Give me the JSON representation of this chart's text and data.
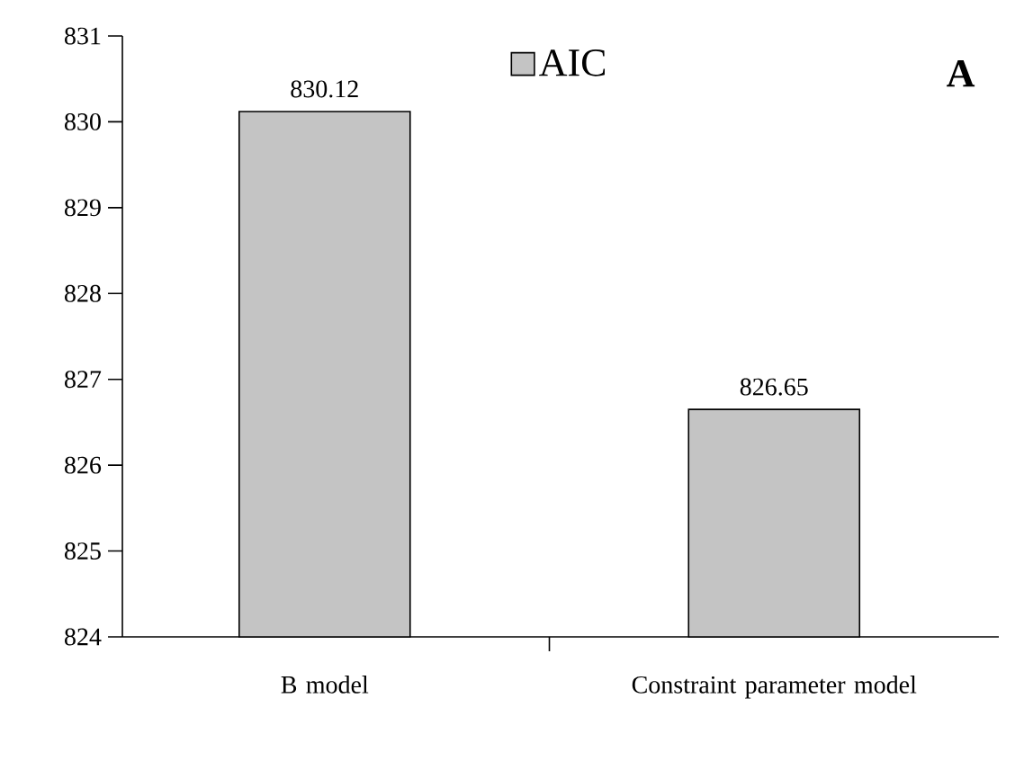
{
  "chart_data": {
    "type": "bar",
    "categories": [
      "B model",
      "Constraint parameter model"
    ],
    "series": [
      {
        "name": "AIC",
        "color": "#c4c4c4",
        "values": [
          830.12,
          826.65
        ]
      }
    ],
    "ylim": [
      824,
      831
    ],
    "yticks": [
      824,
      825,
      826,
      827,
      828,
      829,
      830,
      831
    ],
    "data_labels": true,
    "legend": "top",
    "grid": false,
    "annotations": [
      "A"
    ]
  }
}
